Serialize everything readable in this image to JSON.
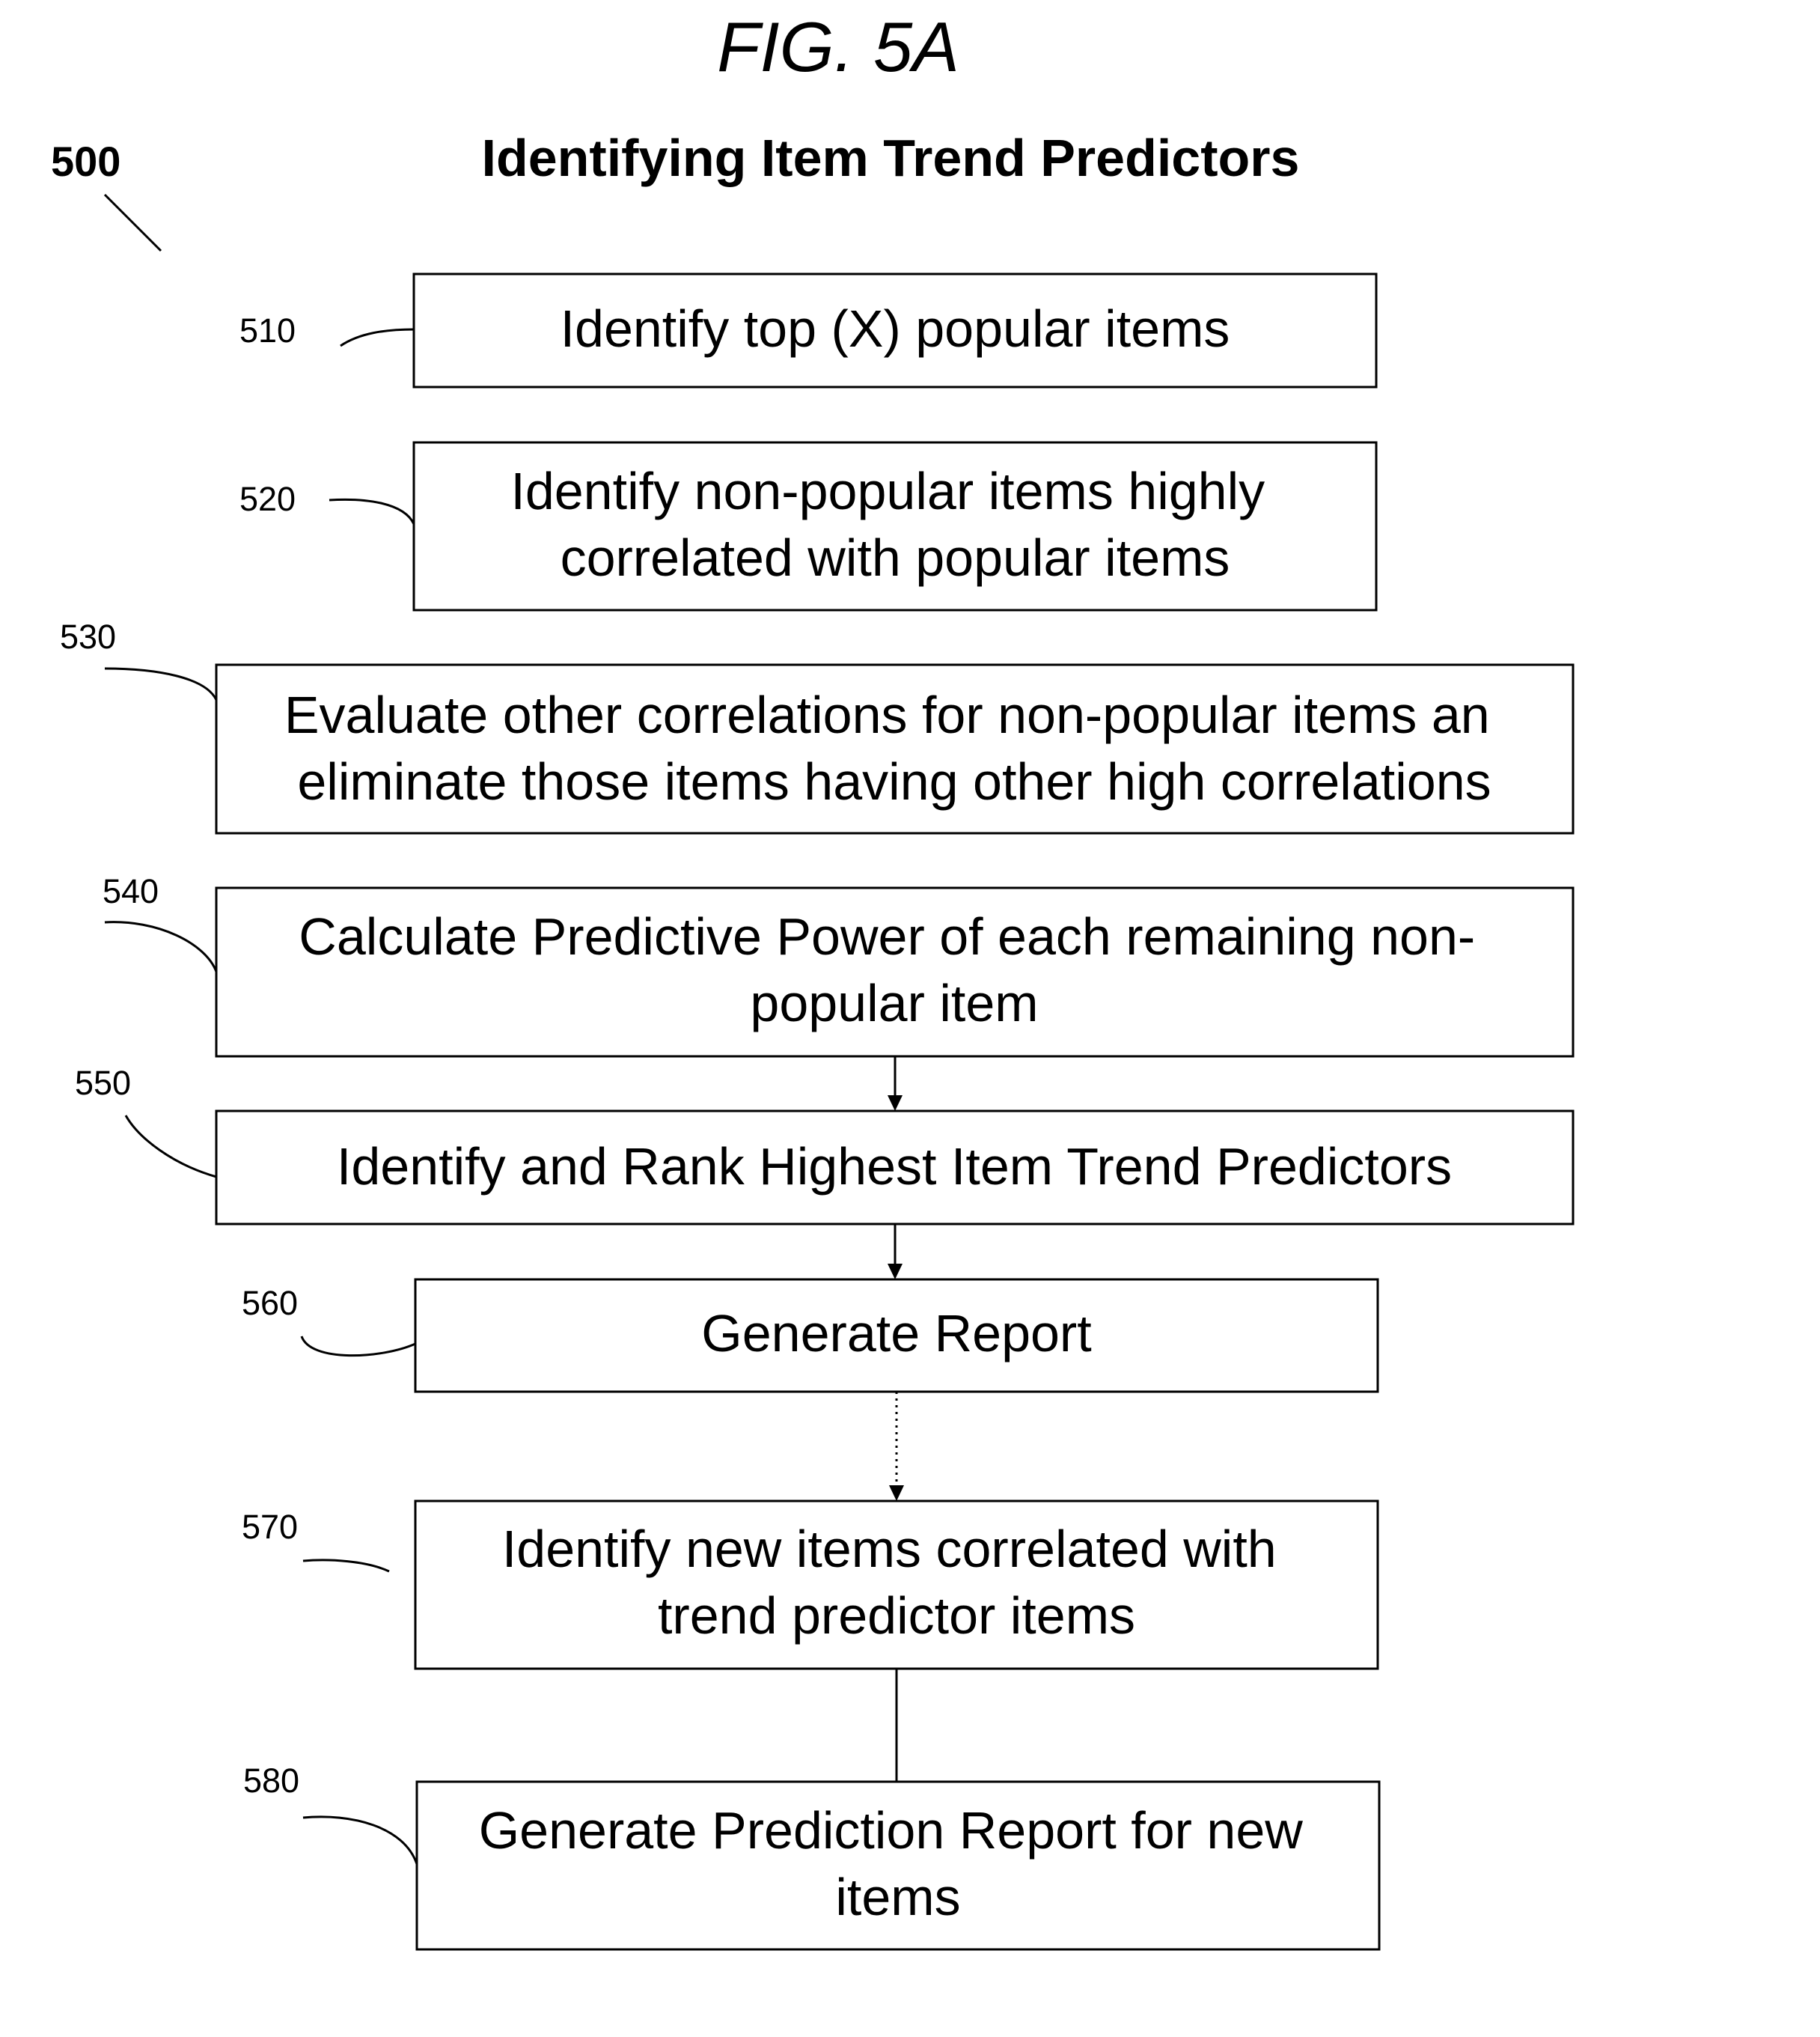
{
  "figure_label": "FIG. 5A",
  "title": "Identifying Item Trend Predictors",
  "figure_ref": "500",
  "steps": [
    {
      "ref": "510",
      "lines": [
        "Identify top (X) popular items"
      ]
    },
    {
      "ref": "520",
      "lines": [
        "Identify non-popular items highly",
        "correlated with popular items"
      ]
    },
    {
      "ref": "530",
      "lines": [
        "Evaluate other correlations for non-popular  items an",
        "eliminate those items having other high correlations"
      ]
    },
    {
      "ref": "540",
      "lines": [
        "Calculate Predictive Power of  each remaining non-",
        "popular item"
      ]
    },
    {
      "ref": "550",
      "lines": [
        "Identify and Rank Highest Item Trend Predictors"
      ]
    },
    {
      "ref": "560",
      "lines": [
        "Generate Report"
      ]
    },
    {
      "ref": "570",
      "lines": [
        "Identify new items correlated with",
        "trend predictor items"
      ]
    },
    {
      "ref": "580",
      "lines": [
        "Generate Prediction Report for new",
        "items"
      ]
    }
  ]
}
